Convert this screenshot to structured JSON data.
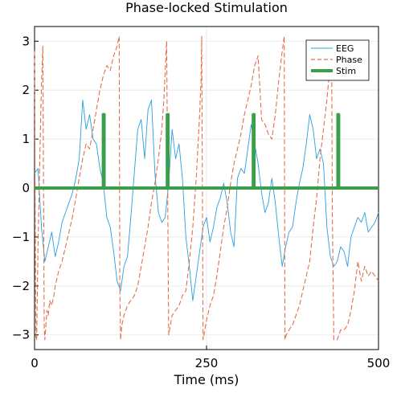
{
  "chart_data": {
    "type": "line",
    "title": "Phase-locked Stimulation",
    "xlabel": "Time (ms)",
    "ylabel": "",
    "xlim": [
      0,
      500
    ],
    "ylim": [
      -3.3,
      3.3
    ],
    "xticks": [
      0,
      250,
      500
    ],
    "yticks": [
      -3,
      -2,
      -1,
      0,
      1,
      2,
      3
    ],
    "grid": true,
    "legend_position": "top-right",
    "series": [
      {
        "name": "EEG",
        "style": "solid",
        "color": "#2a9fe0",
        "x": [
          0,
          5,
          10,
          15,
          20,
          25,
          30,
          35,
          40,
          45,
          50,
          55,
          60,
          65,
          70,
          75,
          80,
          85,
          90,
          95,
          100,
          105,
          110,
          115,
          120,
          125,
          130,
          135,
          140,
          145,
          150,
          155,
          160,
          165,
          170,
          175,
          180,
          185,
          190,
          195,
          200,
          205,
          210,
          215,
          220,
          225,
          230,
          235,
          240,
          245,
          250,
          255,
          260,
          265,
          270,
          275,
          280,
          285,
          290,
          295,
          300,
          305,
          310,
          315,
          320,
          325,
          330,
          335,
          340,
          345,
          350,
          355,
          360,
          365,
          370,
          375,
          380,
          385,
          390,
          395,
          400,
          405,
          410,
          415,
          420,
          425,
          430,
          435,
          440,
          445,
          450,
          455,
          460,
          465,
          470,
          475,
          480,
          485,
          490,
          495,
          500
        ],
        "y": [
          0.3,
          0.4,
          -0.8,
          -1.5,
          -1.2,
          -0.9,
          -1.4,
          -1.1,
          -0.7,
          -0.5,
          -0.3,
          -0.1,
          0.2,
          0.6,
          1.8,
          1.2,
          1.5,
          1.0,
          0.9,
          0.4,
          0.1,
          -0.6,
          -0.8,
          -1.3,
          -1.9,
          -2.1,
          -1.6,
          -1.4,
          -0.6,
          0.3,
          1.2,
          1.4,
          0.6,
          1.6,
          1.8,
          0.3,
          -0.5,
          -0.7,
          -0.6,
          0.1,
          1.2,
          0.6,
          0.9,
          0.2,
          -1.0,
          -1.6,
          -2.3,
          -1.8,
          -1.3,
          -0.8,
          -0.6,
          -1.1,
          -0.8,
          -0.4,
          -0.2,
          0.1,
          -0.3,
          -0.9,
          -1.2,
          0.2,
          0.4,
          0.3,
          0.8,
          1.3,
          0.9,
          0.5,
          -0.1,
          -0.5,
          -0.3,
          0.2,
          -0.3,
          -1.0,
          -1.6,
          -1.2,
          -0.9,
          -0.8,
          -0.3,
          0.1,
          0.4,
          0.9,
          1.5,
          1.2,
          0.6,
          0.8,
          0.5,
          -0.8,
          -1.4,
          -1.6,
          -1.5,
          -1.2,
          -1.3,
          -1.6,
          -1.0,
          -0.8,
          -0.6,
          -0.7,
          -0.5,
          -0.9,
          -0.8,
          -0.7,
          -0.5
        ]
      },
      {
        "name": "Phase",
        "style": "dashed",
        "color": "#e2704c",
        "x": [
          0,
          1,
          2,
          3,
          5,
          8,
          10,
          12,
          14,
          15,
          16,
          18,
          20,
          22,
          25,
          28,
          30,
          35,
          40,
          45,
          50,
          55,
          60,
          65,
          70,
          75,
          80,
          85,
          90,
          95,
          100,
          105,
          110,
          115,
          120,
          123,
          124,
          125,
          127,
          130,
          135,
          140,
          145,
          150,
          155,
          160,
          165,
          170,
          175,
          180,
          185,
          188,
          190,
          192,
          195,
          200,
          205,
          210,
          215,
          220,
          225,
          230,
          235,
          240,
          242,
          243,
          245,
          250,
          255,
          260,
          265,
          270,
          275,
          280,
          285,
          290,
          295,
          300,
          305,
          310,
          315,
          320,
          325,
          330,
          335,
          340,
          345,
          350,
          355,
          360,
          363,
          364,
          366,
          370,
          375,
          380,
          385,
          390,
          395,
          400,
          405,
          410,
          415,
          420,
          425,
          430,
          432,
          433,
          435,
          440,
          445,
          450,
          455,
          460,
          465,
          470,
          475,
          480,
          485,
          490,
          495,
          500
        ],
        "y": [
          2.8,
          -1.0,
          -3.1,
          -3.1,
          -1.2,
          0.8,
          2.1,
          2.9,
          -2.8,
          -3.1,
          -2.9,
          -2.5,
          -2.6,
          -2.3,
          -2.4,
          -2.2,
          -2.0,
          -1.7,
          -1.5,
          -1.2,
          -0.9,
          -0.6,
          -0.2,
          0.2,
          0.6,
          0.9,
          0.8,
          1.2,
          1.6,
          2.0,
          2.3,
          2.5,
          2.4,
          2.7,
          2.9,
          3.1,
          -2.0,
          -3.1,
          -2.8,
          -2.6,
          -2.4,
          -2.3,
          -2.2,
          -2.0,
          -1.6,
          -1.2,
          -0.8,
          -0.3,
          0.1,
          0.6,
          1.2,
          1.8,
          2.4,
          3.0,
          -3.0,
          -2.6,
          -2.5,
          -2.4,
          -2.2,
          -2.1,
          -1.5,
          -0.8,
          0.2,
          1.5,
          2.2,
          3.1,
          -3.1,
          -2.7,
          -2.4,
          -2.2,
          -1.8,
          -1.3,
          -0.8,
          -0.4,
          0.1,
          0.5,
          0.8,
          1.1,
          1.5,
          1.8,
          2.1,
          2.5,
          2.7,
          1.4,
          1.3,
          1.1,
          1.0,
          1.5,
          2.2,
          2.8,
          3.1,
          -3.1,
          -3.0,
          -2.9,
          -2.8,
          -2.6,
          -2.4,
          -2.1,
          -1.8,
          -1.5,
          -0.8,
          -0.2,
          0.6,
          1.2,
          1.8,
          2.6,
          2.3,
          -0.6,
          -3.1,
          -3.1,
          -2.9,
          -2.9,
          -2.8,
          -2.5,
          -2.1,
          -1.5,
          -1.9,
          -1.6,
          -1.8,
          -1.7,
          -1.8,
          -1.9
        ]
      },
      {
        "name": "Stim",
        "style": "solid-thick",
        "color": "#3a9e4a",
        "x": [
          0,
          100,
          100,
          101,
          101,
          193,
          193,
          194,
          194,
          318,
          318,
          319,
          319,
          441,
          441,
          442,
          442,
          500
        ],
        "y": [
          0,
          0,
          1.5,
          1.5,
          0,
          0,
          1.5,
          1.5,
          0,
          0,
          1.5,
          1.5,
          0,
          0,
          1.5,
          1.5,
          0,
          0
        ]
      }
    ]
  }
}
